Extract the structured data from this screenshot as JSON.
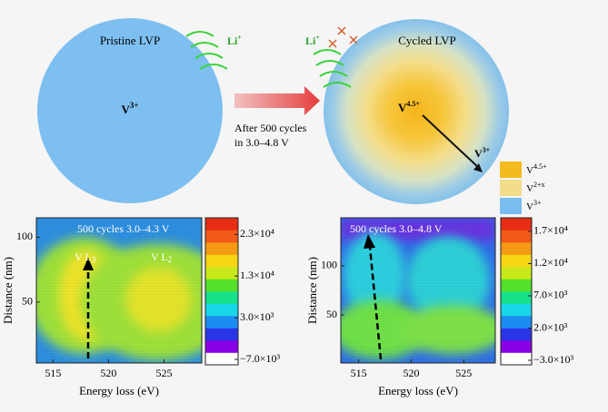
{
  "schematic": {
    "pristine": {
      "title": "Pristine LVP",
      "ion": {
        "base": "V",
        "sup": "3+"
      },
      "li": {
        "base": "Li",
        "sup": "+"
      }
    },
    "transition": {
      "line1": "After 500 cycles",
      "line2": "in 3.0–4.8 V"
    },
    "cycled": {
      "title": "Cycled LVP",
      "li": {
        "base": "Li",
        "sup": "+"
      },
      "core": {
        "base": "V",
        "sup": "4.5+"
      },
      "edge": {
        "base": "V",
        "sup": "3+"
      }
    },
    "legend": [
      {
        "base": "V",
        "sup": "4.5+",
        "color": "#f4bb1e"
      },
      {
        "base": "V",
        "sup": "2+x",
        "color": "#f2dd8a"
      },
      {
        "base": "V",
        "sup": "3+",
        "color": "#79bdf0"
      }
    ]
  },
  "heatmaps": [
    {
      "title": "500 cycles 3.0–4.3 V",
      "xlabel": "Energy loss (eV)",
      "ylabel": "Distance (nm)",
      "xlim": [
        513.5,
        528.4
      ],
      "xticks": [
        515,
        520,
        525
      ],
      "ylim": [
        3,
        115
      ],
      "yticks": [
        50,
        100
      ],
      "annotations": [
        {
          "base": "V L",
          "sub": "3"
        },
        {
          "base": "V L",
          "sub": "2"
        }
      ],
      "colorbar": {
        "lim": [
          -8300,
          27000
        ],
        "ticks": [
          {
            "value": 23000,
            "label": "2.3×10⁴"
          },
          {
            "value": 13000,
            "label": "1.3×10⁴"
          },
          {
            "value": 3000,
            "label": "3.0×10³"
          },
          {
            "value": -7000,
            "label": "−7.0×10³"
          }
        ]
      }
    },
    {
      "title": "500 cycles 3.0–4.8 V",
      "xlabel": "Energy loss (eV)",
      "ylabel": "Distance (nm)",
      "xlim": [
        513.3,
        528.0
      ],
      "xticks": [
        515,
        520,
        525
      ],
      "ylim": [
        1,
        149
      ],
      "yticks": [
        50,
        100
      ],
      "annotations": [],
      "colorbar": {
        "lim": [
          -3700,
          19100
        ],
        "ticks": [
          {
            "value": 17000,
            "label": "1.7×10⁴"
          },
          {
            "value": 12000,
            "label": "1.2×10⁴"
          },
          {
            "value": 7000,
            "label": "7.0×10³"
          },
          {
            "value": 2000,
            "label": "2.0×10³"
          },
          {
            "value": -3000,
            "label": "−3.0×10³"
          }
        ]
      }
    }
  ]
}
